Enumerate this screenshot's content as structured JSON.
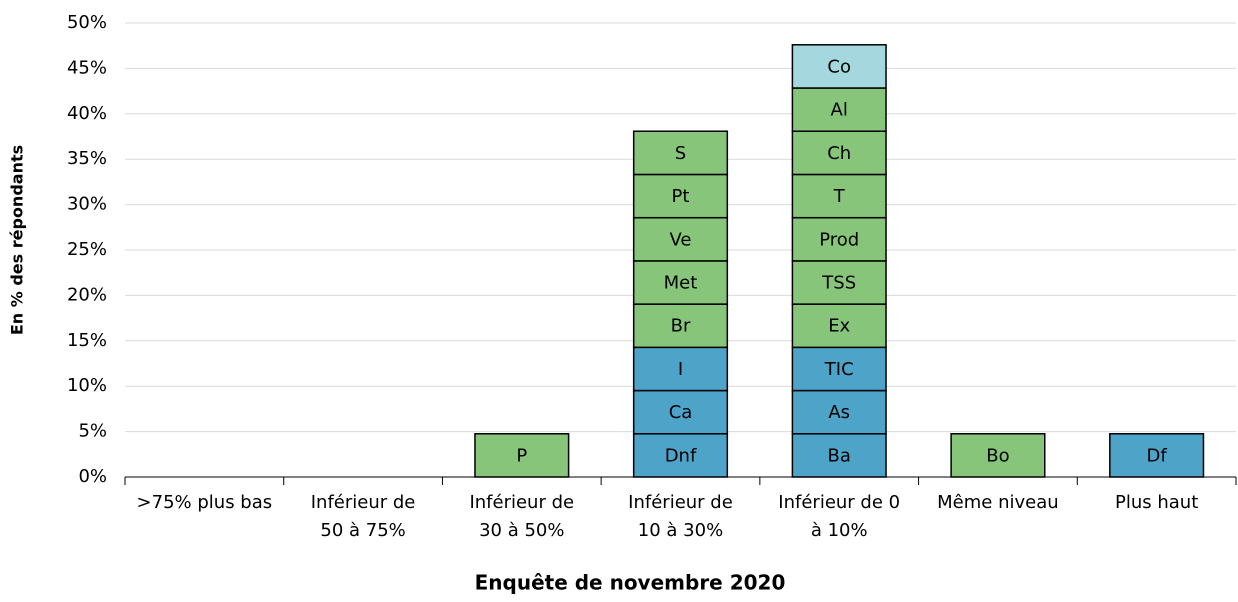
{
  "chart_data": {
    "type": "stacked-blocks",
    "y_label": "En % des répondants",
    "x_label": "Enquête de novembre 2020",
    "categories": [
      [
        ">75% plus bas"
      ],
      [
        "Inférieur de",
        "50 à 75%"
      ],
      [
        "Inférieur de",
        "30 à 50%"
      ],
      [
        "Inférieur de",
        "10 à 30%"
      ],
      [
        "Inférieur de 0",
        "à 10%"
      ],
      [
        "Même niveau"
      ],
      [
        "Plus haut"
      ]
    ],
    "stacks": [
      [],
      [],
      [
        {
          "label": "P",
          "value": 4.76,
          "color": "#86c57a"
        }
      ],
      [
        {
          "label": "Dnf",
          "value": 4.76,
          "color": "#4ea3c9"
        },
        {
          "label": "Ca",
          "value": 4.76,
          "color": "#4ea3c9"
        },
        {
          "label": "I",
          "value": 4.76,
          "color": "#4ea3c9"
        },
        {
          "label": "Br",
          "value": 4.76,
          "color": "#86c57a"
        },
        {
          "label": "Met",
          "value": 4.76,
          "color": "#86c57a"
        },
        {
          "label": "Ve",
          "value": 4.76,
          "color": "#86c57a"
        },
        {
          "label": "Pt",
          "value": 4.76,
          "color": "#86c57a"
        },
        {
          "label": "S",
          "value": 4.76,
          "color": "#86c57a"
        }
      ],
      [
        {
          "label": "Ba",
          "value": 4.76,
          "color": "#4ea3c9"
        },
        {
          "label": "As",
          "value": 4.76,
          "color": "#4ea3c9"
        },
        {
          "label": "TIC",
          "value": 4.76,
          "color": "#4ea3c9"
        },
        {
          "label": "Ex",
          "value": 4.76,
          "color": "#86c57a"
        },
        {
          "label": "TSS",
          "value": 4.76,
          "color": "#86c57a"
        },
        {
          "label": "Prod",
          "value": 4.76,
          "color": "#86c57a"
        },
        {
          "label": "T",
          "value": 4.76,
          "color": "#86c57a"
        },
        {
          "label": "Ch",
          "value": 4.76,
          "color": "#86c57a"
        },
        {
          "label": "Al",
          "value": 4.76,
          "color": "#86c57a"
        },
        {
          "label": "Co",
          "value": 4.76,
          "color": "#a5d8de"
        }
      ],
      [
        {
          "label": "Bo",
          "value": 4.76,
          "color": "#86c57a"
        }
      ],
      [
        {
          "label": "Df",
          "value": 4.76,
          "color": "#4ea3c9"
        }
      ]
    ],
    "ylim": [
      0,
      50
    ],
    "yticks": [
      {
        "value": 0,
        "label": "0%"
      },
      {
        "value": 5,
        "label": "5%"
      },
      {
        "value": 10,
        "label": "10%"
      },
      {
        "value": 15,
        "label": "15%"
      },
      {
        "value": 20,
        "label": "20%"
      },
      {
        "value": 25,
        "label": "25%"
      },
      {
        "value": 30,
        "label": "30%"
      },
      {
        "value": 35,
        "label": "35%"
      },
      {
        "value": 40,
        "label": "40%"
      },
      {
        "value": 45,
        "label": "45%"
      },
      {
        "value": 50,
        "label": "50%"
      }
    ],
    "grid": true
  }
}
